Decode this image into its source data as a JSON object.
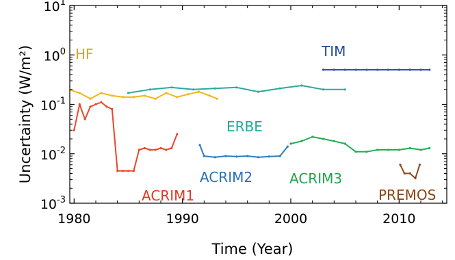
{
  "chart_data": {
    "type": "line",
    "title": "",
    "xlabel": "Time (Year)",
    "ylabel": "Uncertainty (W/m²)",
    "x_scale": "linear",
    "y_scale": "log",
    "xlim": [
      1979.6,
      2014.4
    ],
    "ylim": [
      0.001,
      10
    ],
    "x_ticks": [
      1980,
      1990,
      2000,
      2010
    ],
    "x_tick_labels": [
      "1980",
      "1990",
      "2000",
      "2010"
    ],
    "y_ticks": [
      0.001,
      0.01,
      0.1,
      1,
      10
    ],
    "y_tick_labels": [
      {
        "base": "10",
        "exp": "-3"
      },
      {
        "base": "10",
        "exp": "-2"
      },
      {
        "base": "10",
        "exp": "-1"
      },
      {
        "base": "10",
        "exp": "0"
      },
      {
        "base": "10",
        "exp": "1"
      }
    ],
    "grid": false,
    "legend": "none (series labels placed next to curves)",
    "series": [
      {
        "name": "HF",
        "color": "#F3B51B",
        "x": [
          1978.9,
          1979.5,
          1980.5,
          1981.5,
          1982.5,
          1983.5,
          1984.5,
          1985.5,
          1986.5,
          1987.5,
          1988.5,
          1989.5,
          1990.5,
          1991.5,
          1992.5,
          1993.2
        ],
        "y": [
          0.15,
          0.2,
          0.17,
          0.13,
          0.17,
          0.15,
          0.14,
          0.14,
          0.15,
          0.13,
          0.17,
          0.14,
          0.16,
          0.18,
          0.15,
          0.13
        ]
      },
      {
        "name": "ACRIM1",
        "color": "#E8492B",
        "x": [
          1980.0,
          1980.5,
          1981.0,
          1981.5,
          1982.0,
          1982.5,
          1983.0,
          1983.5,
          1984.0,
          1984.5,
          1985.0,
          1985.5,
          1986.0,
          1986.5,
          1987.0,
          1987.5,
          1988.0,
          1988.5,
          1989.0,
          1989.5
        ],
        "y": [
          0.03,
          0.1,
          0.05,
          0.09,
          0.1,
          0.11,
          0.09,
          0.08,
          0.0045,
          0.0045,
          0.0045,
          0.0045,
          0.012,
          0.013,
          0.012,
          0.012,
          0.013,
          0.012,
          0.013,
          0.025
        ]
      },
      {
        "name": "ERBE",
        "color": "#2BA99A",
        "x": [
          1985.0,
          1987.0,
          1989.0,
          1991.0,
          1993.0,
          1995.0,
          1997.0,
          1999.0,
          2001.0,
          2003.0,
          2005.0
        ],
        "y": [
          0.17,
          0.2,
          0.22,
          0.2,
          0.21,
          0.22,
          0.18,
          0.21,
          0.24,
          0.2,
          0.2
        ]
      },
      {
        "name": "ACRIM2",
        "color": "#2B7CBF",
        "x": [
          1991.6,
          1992.0,
          1993.0,
          1994.0,
          1995.0,
          1996.0,
          1997.0,
          1998.0,
          1999.0,
          1999.7
        ],
        "y": [
          0.015,
          0.009,
          0.0085,
          0.009,
          0.0088,
          0.009,
          0.0085,
          0.0088,
          0.009,
          0.014
        ]
      },
      {
        "name": "ACRIM3",
        "color": "#1FAF50",
        "x": [
          2000.0,
          2001.0,
          2002.0,
          2003.0,
          2004.0,
          2005.0,
          2006.0,
          2007.0,
          2008.0,
          2009.0,
          2010.0,
          2011.0,
          2012.0,
          2012.8
        ],
        "y": [
          0.016,
          0.018,
          0.022,
          0.02,
          0.018,
          0.016,
          0.011,
          0.011,
          0.012,
          0.012,
          0.012,
          0.013,
          0.012,
          0.013
        ]
      },
      {
        "name": "TIM",
        "color": "#2458A8",
        "x": [
          2003.0,
          2004.0,
          2005.0,
          2006.0,
          2007.0,
          2008.0,
          2009.0,
          2010.0,
          2011.0,
          2012.0,
          2012.8
        ],
        "y": [
          0.5,
          0.5,
          0.5,
          0.5,
          0.5,
          0.5,
          0.5,
          0.5,
          0.5,
          0.5,
          0.5
        ]
      },
      {
        "name": "PREMOS",
        "color": "#8B4A1F",
        "x": [
          2010.1,
          2010.5,
          2011.0,
          2011.5,
          2011.9
        ],
        "y": [
          0.006,
          0.004,
          0.004,
          0.0032,
          0.006
        ]
      }
    ],
    "series_label_colors": {
      "HF": "#E0A020",
      "ACRIM1": "#E03A24",
      "ERBE": "#21A798",
      "ACRIM2": "#2670B8",
      "ACRIM3": "#20A448",
      "TIM": "#214C9D",
      "PREMOS": "#8B4513"
    }
  }
}
